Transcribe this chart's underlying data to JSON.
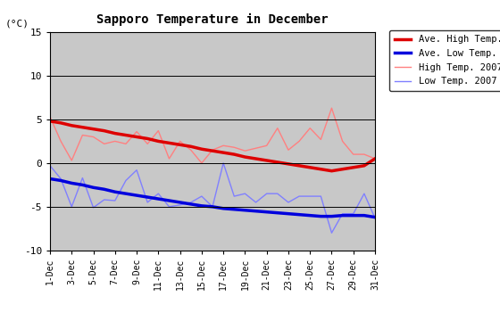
{
  "title": "Sapporo Temperature in December",
  "ylabel": "(°C)",
  "ylim": [
    -10,
    15
  ],
  "yticks": [
    -10,
    -5,
    0,
    5,
    10,
    15
  ],
  "background_color": "#c8c8c8",
  "days": [
    1,
    2,
    3,
    4,
    5,
    6,
    7,
    8,
    9,
    10,
    11,
    12,
    13,
    14,
    15,
    16,
    17,
    18,
    19,
    20,
    21,
    22,
    23,
    24,
    25,
    26,
    27,
    28,
    29,
    30,
    31
  ],
  "xtick_labels": [
    "1-Dec",
    "3-Dec",
    "5-Dec",
    "7-Dec",
    "9-Dec",
    "11-Dec",
    "13-Dec",
    "15-Dec",
    "17-Dec",
    "19-Dec",
    "21-Dec",
    "23-Dec",
    "25-Dec",
    "27-Dec",
    "29-Dec",
    "31-Dec"
  ],
  "xtick_positions": [
    1,
    3,
    5,
    7,
    9,
    11,
    13,
    15,
    17,
    19,
    21,
    23,
    25,
    27,
    29,
    31
  ],
  "ave_high": [
    4.8,
    4.6,
    4.3,
    4.1,
    3.9,
    3.7,
    3.4,
    3.2,
    3.0,
    2.8,
    2.5,
    2.3,
    2.1,
    1.9,
    1.6,
    1.4,
    1.2,
    1.0,
    0.7,
    0.5,
    0.3,
    0.1,
    -0.1,
    -0.3,
    -0.5,
    -0.7,
    -0.9,
    -0.7,
    -0.5,
    -0.3,
    0.5
  ],
  "ave_low": [
    -1.8,
    -2.0,
    -2.3,
    -2.5,
    -2.8,
    -3.0,
    -3.3,
    -3.5,
    -3.7,
    -3.9,
    -4.1,
    -4.3,
    -4.5,
    -4.7,
    -4.9,
    -5.0,
    -5.2,
    -5.3,
    -5.4,
    -5.5,
    -5.6,
    -5.7,
    -5.8,
    -5.9,
    -6.0,
    -6.1,
    -6.1,
    -6.0,
    -6.0,
    -6.0,
    -6.2
  ],
  "high_2007": [
    5.3,
    2.5,
    0.3,
    3.2,
    3.0,
    2.2,
    2.5,
    2.2,
    3.6,
    2.2,
    3.7,
    0.5,
    2.5,
    1.5,
    0.0,
    1.5,
    2.0,
    1.8,
    1.4,
    1.7,
    2.0,
    4.0,
    1.5,
    2.5,
    4.0,
    2.7,
    6.3,
    2.5,
    1.0,
    1.0,
    0.5
  ],
  "low_2007": [
    -0.3,
    -1.8,
    -5.0,
    -1.7,
    -5.1,
    -4.2,
    -4.3,
    -2.0,
    -0.8,
    -4.5,
    -3.5,
    -5.0,
    -4.8,
    -4.5,
    -3.8,
    -5.0,
    0.0,
    -3.8,
    -3.5,
    -4.5,
    -3.5,
    -3.5,
    -4.5,
    -3.8,
    -3.8,
    -3.8,
    -8.0,
    -5.8,
    -5.8,
    -3.5,
    -6.3
  ],
  "ave_high_color": "#dd0000",
  "ave_low_color": "#0000dd",
  "high_2007_color": "#ff8080",
  "low_2007_color": "#8080ff",
  "legend_entries": [
    "Ave. High Temp.",
    "Ave. Low Temp.",
    "High Temp. 2007",
    "Low Temp. 2007"
  ]
}
